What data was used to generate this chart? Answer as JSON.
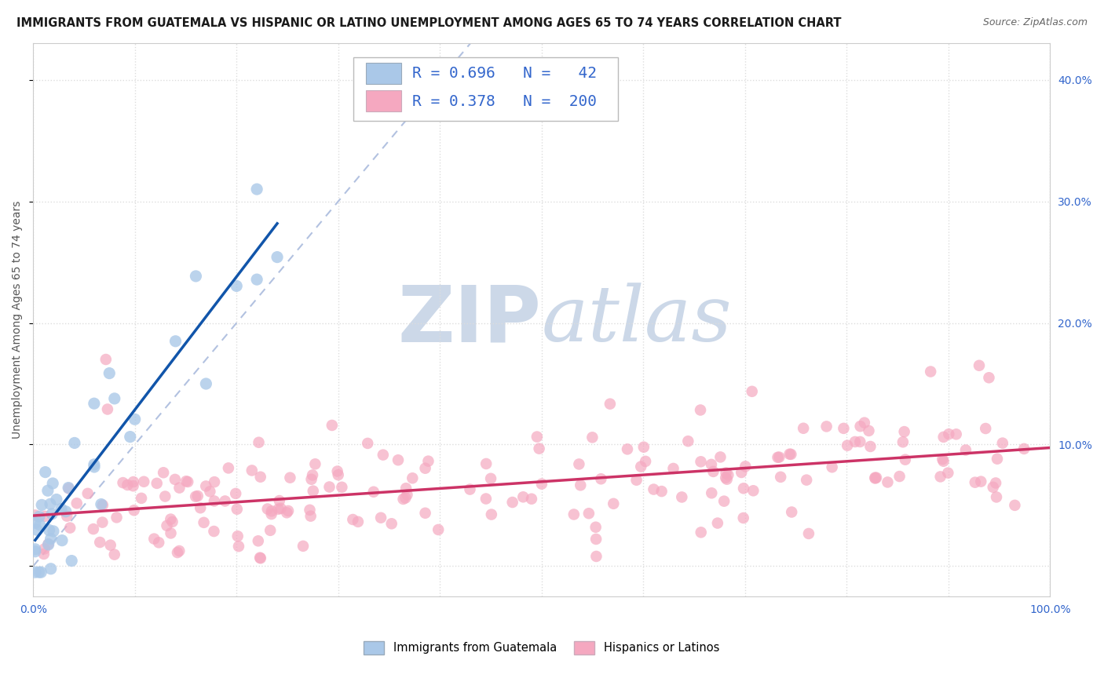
{
  "title": "IMMIGRANTS FROM GUATEMALA VS HISPANIC OR LATINO UNEMPLOYMENT AMONG AGES 65 TO 74 YEARS CORRELATION CHART",
  "source": "Source: ZipAtlas.com",
  "ylabel": "Unemployment Among Ages 65 to 74 years",
  "xlim": [
    0.0,
    1.0
  ],
  "ylim": [
    -0.025,
    0.43
  ],
  "y_ticks": [
    0.0,
    0.1,
    0.2,
    0.3,
    0.4
  ],
  "blue_R": 0.696,
  "blue_N": 42,
  "pink_R": 0.378,
  "pink_N": 200,
  "blue_color": "#aac8e8",
  "blue_line_color": "#1155aa",
  "pink_color": "#f5a8c0",
  "pink_line_color": "#cc3366",
  "diagonal_color": "#aabbdd",
  "background_color": "#ffffff",
  "grid_color": "#dddddd",
  "watermark_zip": "ZIP",
  "watermark_atlas": "atlas",
  "watermark_color": "#ccd8e8",
  "title_fontsize": 10.5,
  "source_fontsize": 9,
  "axis_label_fontsize": 10,
  "legend_fontsize": 14,
  "tick_fontsize": 10,
  "ylabel_color": "#555555",
  "tick_color": "#3366cc"
}
